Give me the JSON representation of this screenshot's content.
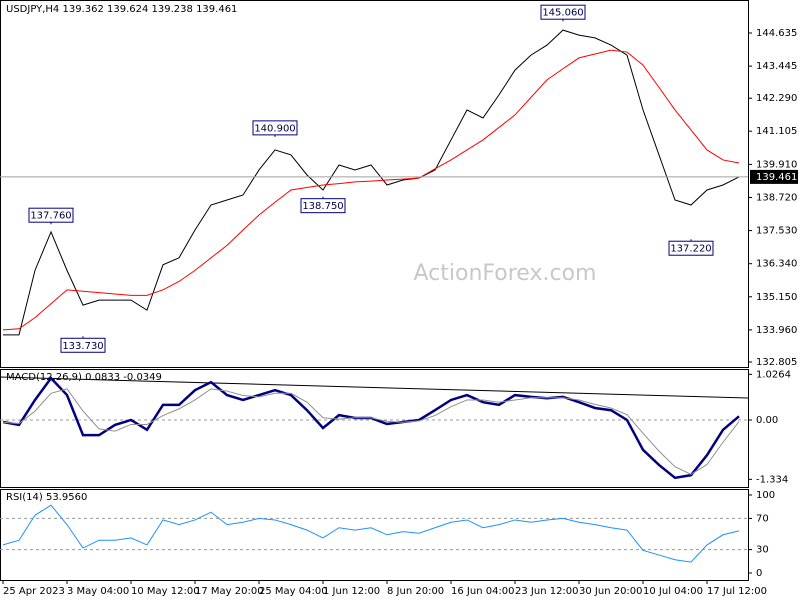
{
  "chart_data": [
    {
      "type": "line",
      "title": "USDJPY,H4 139.362 139.624 139.238 139.461",
      "watermark": "ActionForex.com",
      "categories": [
        "25 Apr 2023",
        null,
        null,
        null,
        "3 May 04:00",
        null,
        null,
        null,
        "10 May 12:00",
        null,
        null,
        null,
        "17 May 20:00",
        null,
        null,
        null,
        "25 May 04:00",
        null,
        null,
        null,
        "1 Jun 12:00",
        null,
        null,
        null,
        "8 Jun 20:00",
        null,
        null,
        null,
        "16 Jun 04:00",
        null,
        null,
        null,
        "23 Jun 12:00",
        null,
        null,
        null,
        "30 Jun 20:00",
        null,
        null,
        null,
        "10 Jul 04:00",
        null,
        null,
        null,
        "17 Jul 12:00",
        null,
        null
      ],
      "series": [
        {
          "color": "#000000",
          "values": [
            133.78,
            133.78,
            136.1,
            137.48,
            136.1,
            134.85,
            135.03,
            135.03,
            135.03,
            134.67,
            136.3,
            136.55,
            137.55,
            138.45,
            138.63,
            138.81,
            139.71,
            140.43,
            140.25,
            139.53,
            138.99,
            139.89,
            139.71,
            139.89,
            139.17,
            139.35,
            139.42,
            139.71,
            140.79,
            141.87,
            141.58,
            142.41,
            143.3,
            143.84,
            144.2,
            144.74,
            144.56,
            144.46,
            144.2,
            143.84,
            141.87,
            140.25,
            138.63,
            138.45,
            138.99,
            139.17,
            139.46
          ]
        },
        {
          "color": "#ff0000",
          "values": [
            133.96,
            134.0,
            134.4,
            134.9,
            135.4,
            135.35,
            135.3,
            135.25,
            135.2,
            135.2,
            135.4,
            135.7,
            136.1,
            136.55,
            137.0,
            137.55,
            138.09,
            138.55,
            138.99,
            139.08,
            139.17,
            139.22,
            139.28,
            139.31,
            139.35,
            139.38,
            139.42,
            139.75,
            140.07,
            140.43,
            140.79,
            141.24,
            141.69,
            142.32,
            142.95,
            143.35,
            143.74,
            143.88,
            144.02,
            143.95,
            143.48,
            142.68,
            141.87,
            141.15,
            140.43,
            140.07,
            139.96
          ]
        }
      ],
      "ylim": [
        132.625,
        145.822
      ],
      "yticks": [
        144.635,
        143.445,
        {
          "value": 142.29,
          "label": "142.290"
        },
        141.105,
        {
          "value": 139.91,
          "label": "139.910"
        },
        {
          "value": 138.72,
          "label": "138.720"
        },
        {
          "value": 137.53,
          "label": "137.530"
        },
        {
          "value": 136.34,
          "label": "136.340"
        },
        {
          "value": 135.15,
          "label": "135.150"
        },
        {
          "value": 133.96,
          "label": "133.960"
        },
        132.805
      ],
      "grid": false,
      "last_price": 139.461,
      "annotations": [
        {
          "value": 145.06,
          "label": "145.060",
          "index": 35
        },
        {
          "value": 140.9,
          "label": "140.900",
          "index": 17
        },
        {
          "value": 137.76,
          "label": "137.760",
          "index": 3
        },
        {
          "value": 133.73,
          "label": "133.730",
          "index": 5
        },
        {
          "value": 138.75,
          "label": "138.750",
          "index": 20
        },
        {
          "value": 137.22,
          "label": "137.220",
          "index": 43
        }
      ]
    },
    {
      "type": "line",
      "title": "MACD(12,26,9) 0.0833 -0.0349",
      "series": [
        {
          "color": "#000080",
          "values": [
            -0.045,
            -0.11,
            0.45,
            0.94,
            0.56,
            -0.34,
            -0.34,
            -0.11,
            0,
            -0.22,
            0.34,
            0.34,
            0.67,
            0.85,
            0.56,
            0.45,
            0.56,
            0.67,
            0.56,
            0.22,
            -0.18,
            0.11,
            0.045,
            0.045,
            -0.09,
            -0.045,
            0,
            0.22,
            0.45,
            0.56,
            0.4,
            0.34,
            0.56,
            0.52,
            0.49,
            0.52,
            0.4,
            0.27,
            0.22,
            0,
            -0.67,
            -1.01,
            -1.3,
            -1.24,
            -0.79,
            -0.22,
            0.0833
          ]
        },
        {
          "color": "#909090",
          "values": [
            -0.05,
            -0.08,
            0.2,
            0.6,
            0.7,
            0.2,
            -0.2,
            -0.25,
            -0.1,
            -0.1,
            0.1,
            0.25,
            0.45,
            0.7,
            0.65,
            0.55,
            0.52,
            0.6,
            0.6,
            0.4,
            0.05,
            0.02,
            0.05,
            0.05,
            -0.03,
            -0.05,
            -0.02,
            0.1,
            0.3,
            0.45,
            0.45,
            0.4,
            0.45,
            0.5,
            0.5,
            0.5,
            0.45,
            0.35,
            0.27,
            0.12,
            -0.3,
            -0.7,
            -1.05,
            -1.22,
            -1.0,
            -0.5,
            -0.0349
          ]
        }
      ],
      "ylim": [
        -1.506,
        1.146
      ],
      "yticks": [
        1.0264,
        {
          "value": 0,
          "label": "0.00"
        },
        -1.334
      ],
      "grid": true
    },
    {
      "type": "line",
      "title": "RSI(14) 53.9560",
      "series": [
        {
          "color": "#1e90ff",
          "values": [
            36,
            42,
            74,
            87,
            62,
            32,
            42,
            42,
            45,
            36,
            68,
            62,
            68,
            78,
            62,
            65,
            70,
            68,
            62,
            55,
            45,
            58,
            55,
            58,
            49,
            53,
            51,
            58,
            65,
            68,
            58,
            62,
            68,
            65,
            68,
            70,
            65,
            62,
            58,
            55,
            29,
            23,
            17,
            14,
            36,
            49,
            53.956
          ]
        }
      ],
      "ylim": [
        -9,
        107.7
      ],
      "yticks": [
        100,
        70,
        30,
        0
      ],
      "grid": true
    }
  ]
}
